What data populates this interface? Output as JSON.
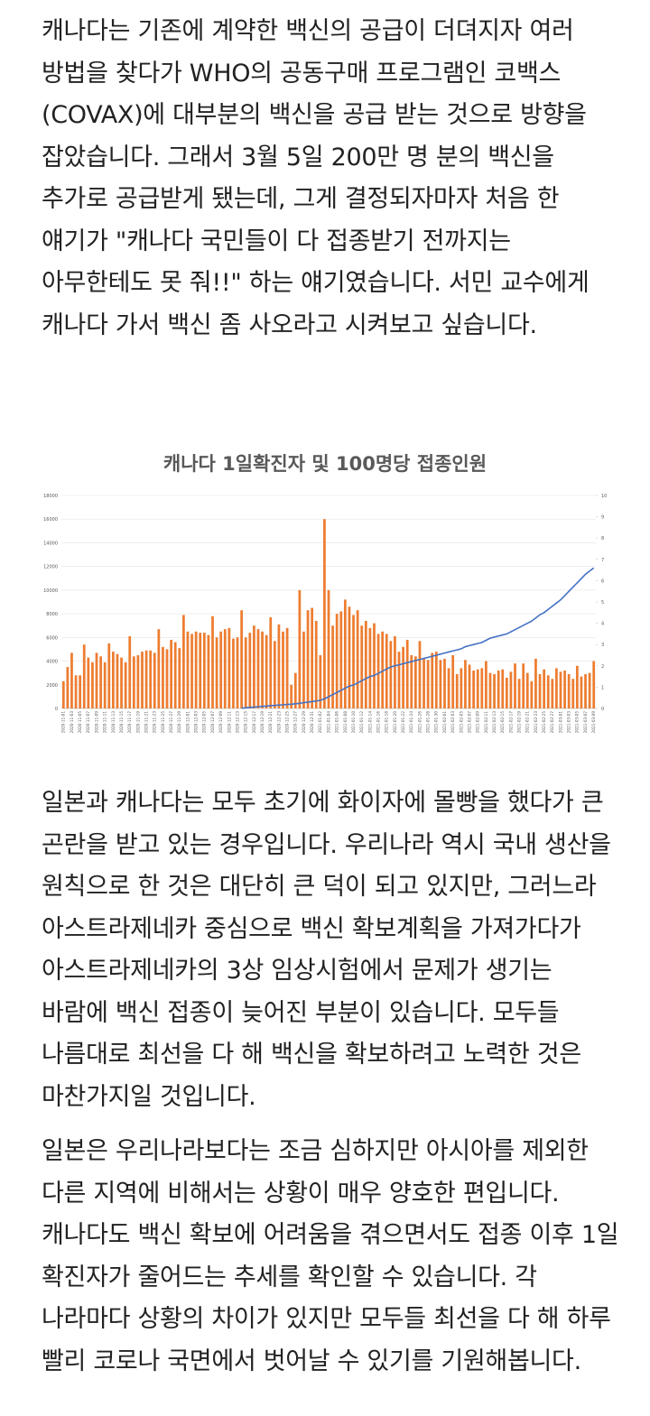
{
  "paragraphs": [
    "캐나다는 기존에 계약한 백신의 공급이 더뎌지자 여러 방법을 찾다가 WHO의 공동구매 프로그램인 코백스(COVAX)에 대부분의 백신을 공급 받는 것으로 방향을 잡았습니다. 그래서 3월 5일 200만 명 분의 백신을 추가로 공급받게 됐는데, 그게 결정되자마자 처음 한 얘기가 \"캐나다 국민들이 다 접종받기 전까지는 아무한테도 못 줘!!\" 하는 얘기였습니다. 서민 교수에게 캐나다 가서 백신 좀 사오라고 시켜보고 싶습니다.",
    "일본과 캐나다는 모두 초기에 화이자에 몰빵을 했다가 큰 곤란을 받고 있는 경우입니다. 우리나라 역시 국내 생산을 원칙으로 한 것은 대단히 큰 덕이 되고 있지만, 그러느라 아스트라제네카 중심으로 백신 확보계획을 가져가다가 아스트라제네카의 3상 임상시험에서 문제가 생기는 바람에 백신 접종이 늦어진 부분이 있습니다. 모두들 나름대로 최선을 다 해 백신을 확보하려고 노력한 것은 마찬가지일 것입니다.",
    "일본은 우리나라보다는 조금 심하지만 아시아를 제외한 다른 지역에 비해서는 상황이 매우 양호한 편입니다. 캐나다도 백신 확보에 어려움을 겪으면서도 접종 이후 1일 확진자가 줄어드는 추세를 확인할 수 있습니다. 각 나라마다 상황의 차이가 있지만 모두들 최선을 다 해 하루 빨리 코로나 국면에서 벗어날 수 있기를 기원해봅니다."
  ],
  "chart_data": {
    "type": "bar",
    "title": "캐나다 1일확진자 및 100명당 접종인원",
    "categories": [
      "2020-11-01",
      null,
      "2020-11-03",
      null,
      "2020-11-05",
      null,
      "2020-11-07",
      null,
      "2020-11-09",
      null,
      "2020-11-11",
      null,
      "2020-11-13",
      null,
      "2020-11-15",
      null,
      "2020-11-17",
      null,
      "2020-11-19",
      null,
      "2020-11-21",
      null,
      "2020-11-23",
      null,
      "2020-11-25",
      null,
      "2020-11-27",
      null,
      "2020-11-29",
      null,
      "2020-12-01",
      null,
      "2020-12-03",
      null,
      "2020-12-05",
      null,
      "2020-12-07",
      null,
      "2020-12-09",
      null,
      "2020-12-11",
      null,
      "2020-12-13",
      null,
      "2020-12-15",
      null,
      "2020-12-17",
      null,
      "2020-12-19",
      null,
      "2020-12-21",
      null,
      "2020-12-23",
      null,
      "2020-12-25",
      null,
      "2020-12-27",
      null,
      "2020-12-29",
      null,
      "2020-12-31",
      null,
      "2021-01-02",
      null,
      "2021-01-04",
      null,
      "2021-01-06",
      null,
      "2021-01-08",
      null,
      "2021-01-10",
      null,
      "2021-01-12",
      null,
      "2021-01-14",
      null,
      "2021-01-16",
      null,
      "2021-01-18",
      null,
      "2021-01-20",
      null,
      "2021-01-22",
      null,
      "2021-01-24",
      null,
      "2021-01-26",
      null,
      "2021-01-28",
      null,
      "2021-01-30",
      null,
      "2021-02-01",
      null,
      "2021-02-03",
      null,
      "2021-02-05",
      null,
      "2021-02-07",
      null,
      "2021-02-09",
      null,
      "2021-02-11",
      null,
      "2021-02-13",
      null,
      "2021-02-15",
      null,
      "2021-02-17",
      null,
      "2021-02-19",
      null,
      "2021-02-21",
      null,
      "2021-02-23",
      null,
      "2021-02-25",
      null,
      "2021-02-27",
      null,
      "2021-03-01",
      null,
      "2021-03-03",
      null,
      "2021-03-05",
      null,
      "2021-03-07",
      null,
      "2021-03-09"
    ],
    "series": [
      {
        "type": "bar",
        "color": "#ed7d31",
        "values": [
          2300,
          3500,
          4700,
          2800,
          2800,
          5400,
          4300,
          3900,
          4700,
          4400,
          3900,
          5500,
          4800,
          4600,
          4300,
          3900,
          6100,
          4400,
          4500,
          4800,
          4900,
          4900,
          4700,
          6700,
          5200,
          5000,
          5800,
          5600,
          5100,
          7900,
          6500,
          6300,
          6500,
          6400,
          6400,
          6200,
          7800,
          6000,
          6500,
          6700,
          6800,
          5900,
          6000,
          8300,
          6000,
          6400,
          7000,
          6700,
          6500,
          6200,
          7700,
          5700,
          7100,
          6500,
          6800,
          2000,
          3000,
          10000,
          6500,
          8300,
          8500,
          7400,
          4500,
          16000,
          10000,
          7000,
          8000,
          8200,
          9200,
          8600,
          7900,
          8300,
          7000,
          7400,
          6800,
          7200,
          6300,
          6500,
          6300,
          5700,
          6100,
          4800,
          5200,
          5800,
          4500,
          4400,
          5700,
          4200,
          4100,
          4700,
          4800,
          4100,
          4200,
          3400,
          4500,
          2900,
          3400,
          4100,
          3700,
          3200,
          3300,
          3400,
          4000,
          3000,
          2900,
          3200,
          3300,
          2600,
          3100,
          3800,
          2500,
          3800,
          3000,
          2300,
          4200,
          2900,
          3300,
          2800,
          2500,
          3400,
          3100,
          3200,
          2900,
          2500,
          3600,
          2700,
          2900,
          3000,
          4000
        ]
      },
      {
        "type": "line",
        "axis": "y2",
        "color": "#4472c4",
        "values": [
          null,
          null,
          null,
          null,
          null,
          null,
          null,
          null,
          null,
          null,
          null,
          null,
          null,
          null,
          null,
          null,
          null,
          null,
          null,
          null,
          null,
          null,
          null,
          null,
          null,
          null,
          null,
          null,
          null,
          null,
          null,
          null,
          null,
          null,
          null,
          null,
          null,
          null,
          null,
          null,
          null,
          null,
          null,
          0.02,
          0.03,
          0.05,
          0.06,
          0.08,
          0.1,
          0.11,
          0.13,
          0.14,
          0.16,
          0.17,
          0.19,
          0.2,
          0.22,
          0.24,
          0.27,
          0.3,
          0.32,
          0.35,
          0.38,
          0.45,
          0.55,
          0.65,
          0.75,
          0.85,
          0.95,
          1.05,
          1.1,
          1.2,
          1.3,
          1.4,
          1.5,
          1.55,
          1.65,
          1.75,
          1.85,
          1.95,
          2.0,
          2.05,
          2.1,
          2.15,
          2.2,
          2.25,
          2.3,
          2.35,
          2.4,
          2.45,
          2.5,
          2.55,
          2.6,
          2.65,
          2.7,
          2.75,
          2.8,
          2.9,
          2.95,
          3.0,
          3.05,
          3.1,
          3.2,
          3.3,
          3.35,
          3.4,
          3.45,
          3.5,
          3.6,
          3.7,
          3.8,
          3.9,
          4.0,
          4.1,
          4.25,
          4.4,
          4.5,
          4.65,
          4.8,
          4.95,
          5.1,
          5.3,
          5.5,
          5.7,
          5.9,
          6.1,
          6.3,
          6.45,
          6.6
        ]
      }
    ],
    "ylim": [
      0,
      18000
    ],
    "yticks": [
      0,
      2000,
      4000,
      6000,
      8000,
      10000,
      12000,
      14000,
      16000,
      18000
    ],
    "y2lim": [
      0,
      10
    ],
    "y2ticks": [
      0,
      1,
      2,
      3,
      4,
      5,
      6,
      7,
      8,
      9,
      10
    ],
    "grid": true
  }
}
